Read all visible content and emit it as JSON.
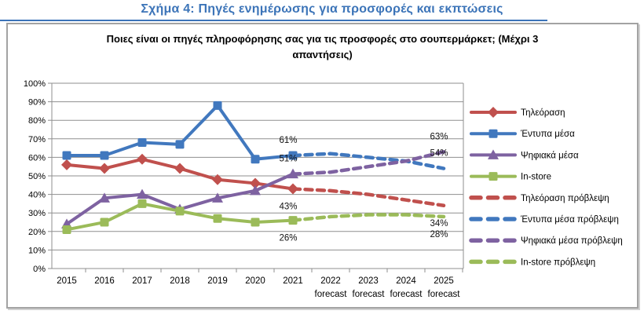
{
  "figure_title": "Σχήμα 4: Πηγές ενημέρωσης για προσφορές και εκπτώσεις",
  "chart_data": {
    "type": "line",
    "title": "Ποιες είναι οι πηγές πληροφόρησης σας για τις προσφορές στο σουπερμάρκετ; (Μέχρι 3 απαντήσεις)",
    "title_line1": "Ποιες είναι οι πηγές πληροφόρησης σας για τις προσφορές στο σουπερμάρκετ; (Μέχρι 3",
    "title_line2": "απαντήσεις)",
    "grid": true,
    "legend_position": "right",
    "y_axis": {
      "min": 0,
      "max": 100,
      "step": 10,
      "suffix": "%"
    },
    "categories": [
      {
        "label": "2015",
        "sublabel": ""
      },
      {
        "label": "2016",
        "sublabel": ""
      },
      {
        "label": "2017",
        "sublabel": ""
      },
      {
        "label": "2018",
        "sublabel": ""
      },
      {
        "label": "2019",
        "sublabel": ""
      },
      {
        "label": "2020",
        "sublabel": ""
      },
      {
        "label": "2021",
        "sublabel": ""
      },
      {
        "label": "2022",
        "sublabel": "forecast"
      },
      {
        "label": "2023",
        "sublabel": "forecast"
      },
      {
        "label": "2024",
        "sublabel": "forecast"
      },
      {
        "label": "2025",
        "sublabel": "forecast"
      }
    ],
    "series": [
      {
        "name": "Τηλεόραση",
        "color": "#C0504D",
        "style": "solid",
        "marker": "diamond",
        "values": [
          56,
          54,
          59,
          54,
          48,
          46,
          43,
          null,
          null,
          null,
          null
        ]
      },
      {
        "name": "Έντυπα μέσα",
        "color": "#4178BE",
        "style": "solid",
        "marker": "square",
        "values": [
          61,
          61,
          68,
          67,
          88,
          59,
          61,
          null,
          null,
          null,
          null
        ]
      },
      {
        "name": "Ψηφιακά μέσα",
        "color": "#7E62A1",
        "style": "solid",
        "marker": "triangle",
        "values": [
          24,
          38,
          40,
          32,
          38,
          42,
          51,
          null,
          null,
          null,
          null
        ]
      },
      {
        "name": "In-store",
        "color": "#9BBB59",
        "style": "solid",
        "marker": "square",
        "values": [
          21,
          25,
          35,
          31,
          27,
          25,
          26,
          null,
          null,
          null,
          null
        ]
      },
      {
        "name": "Τηλεόραση πρόβλεψη",
        "color": "#C0504D",
        "style": "dashed",
        "marker": "none",
        "values": [
          null,
          null,
          null,
          null,
          null,
          null,
          43,
          42,
          40,
          37,
          34
        ]
      },
      {
        "name": "Έντυπα μέσα πρόβλεψη",
        "color": "#4178BE",
        "style": "dashed",
        "marker": "none",
        "values": [
          null,
          null,
          null,
          null,
          null,
          null,
          61,
          62,
          60,
          58,
          54
        ]
      },
      {
        "name": "Ψηφιακά μέσα πρόβλεψη",
        "color": "#7E62A1",
        "style": "dashed",
        "marker": "none",
        "values": [
          null,
          null,
          null,
          null,
          null,
          null,
          51,
          52,
          55,
          58,
          63
        ]
      },
      {
        "name": "In-store πρόβλεψη",
        "color": "#9BBB59",
        "style": "dashed",
        "marker": "none",
        "values": [
          null,
          null,
          null,
          null,
          null,
          null,
          26,
          28,
          29,
          29,
          28
        ]
      }
    ],
    "point_labels": [
      {
        "text": "61%",
        "series": 1,
        "index": 6,
        "placement": "above"
      },
      {
        "text": "51%",
        "series": 2,
        "index": 6,
        "placement": "above"
      },
      {
        "text": "43%",
        "series": 0,
        "index": 6,
        "placement": "below"
      },
      {
        "text": "26%",
        "series": 3,
        "index": 6,
        "placement": "below"
      },
      {
        "text": "63%",
        "series": 6,
        "index": 10,
        "placement": "above"
      },
      {
        "text": "54%",
        "series": 5,
        "index": 10,
        "placement": "above"
      },
      {
        "text": "34%",
        "series": 4,
        "index": 10,
        "placement": "below"
      },
      {
        "text": "28%",
        "series": 7,
        "index": 10,
        "placement": "below"
      }
    ],
    "colors": {
      "heading_blue": "#3C74B8",
      "gridline_gray": "#8f8f8f",
      "box_border_gray": "#a3a3a3"
    }
  }
}
